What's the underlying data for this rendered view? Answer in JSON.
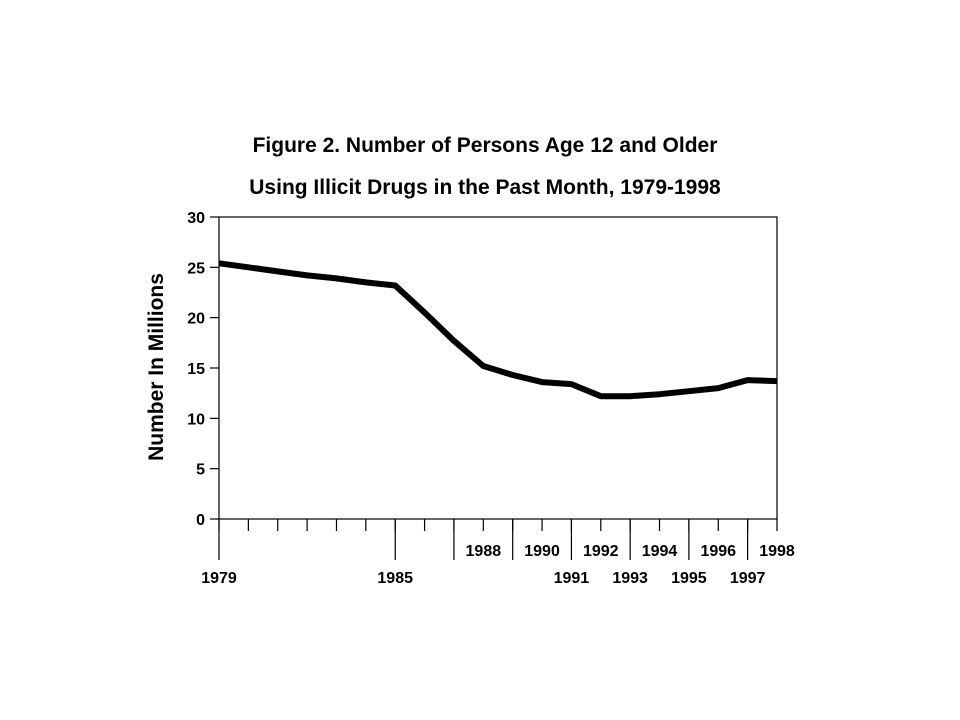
{
  "chart_data": {
    "type": "line",
    "title": [
      "Figure 2.  Number of Persons Age 12 and Older",
      "Using Illicit Drugs in the Past Month, 1979-1998"
    ],
    "xlabel": "",
    "ylabel": "Number In Millions",
    "ylim": [
      0,
      30
    ],
    "yticks": [
      0,
      5,
      10,
      15,
      20,
      25,
      30
    ],
    "xlim": [
      1979,
      1998
    ],
    "x_label_rows": [
      [
        {
          "x": 1988,
          "label": "1988"
        },
        {
          "x": 1990,
          "label": "1990"
        },
        {
          "x": 1992,
          "label": "1992"
        },
        {
          "x": 1994,
          "label": "1994"
        },
        {
          "x": 1996,
          "label": "1996"
        },
        {
          "x": 1998,
          "label": "1998"
        }
      ],
      [
        {
          "x": 1979,
          "label": "1979"
        },
        {
          "x": 1985,
          "label": "1985"
        },
        {
          "x": 1991,
          "label": "1991"
        },
        {
          "x": 1993,
          "label": "1993"
        },
        {
          "x": 1995,
          "label": "1995"
        },
        {
          "x": 1997,
          "label": "1997"
        }
      ]
    ],
    "grid": false,
    "series": [
      {
        "color": "#000000",
        "x": [
          1979,
          1980,
          1981,
          1982,
          1983,
          1984,
          1985,
          1986,
          1987,
          1988,
          1989,
          1990,
          1991,
          1992,
          1993,
          1994,
          1995,
          1996,
          1997,
          1998
        ],
        "values": [
          25.4,
          25.0,
          24.6,
          24.2,
          23.9,
          23.5,
          23.2,
          20.5,
          17.7,
          15.2,
          14.3,
          13.6,
          13.4,
          12.2,
          12.2,
          12.4,
          12.7,
          13.0,
          13.8,
          13.7
        ]
      }
    ]
  }
}
